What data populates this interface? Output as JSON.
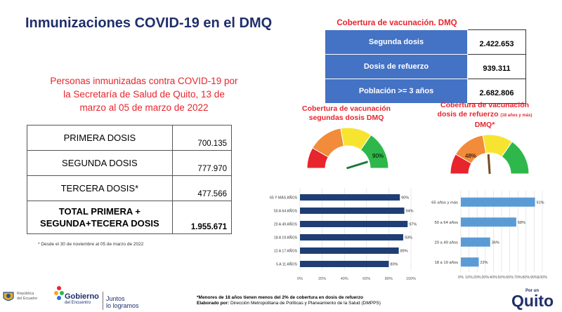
{
  "page_title": "Inmunizaciones COVID-19 en el DMQ",
  "left": {
    "subtitle_lines": [
      "Personas inmunizadas contra COVID-19 por",
      "la Secretaría de Salud de Quito, 13 de",
      "marzo al 05 de marzo de 2022"
    ],
    "rows": [
      {
        "label": "PRIMERA DOSIS",
        "value": "700.135"
      },
      {
        "label": "SEGUNDA DOSIS",
        "value": "777.970"
      },
      {
        "label": "TERCERA DOSIS*",
        "value": "477.566"
      }
    ],
    "total_label_1": "TOTAL PRIMERA +",
    "total_label_2": "SEGUNDA+TECERA DOSIS",
    "total_value": "1.955.671",
    "footnote": "* Desde el  30 de noviembre al 05 de marzo de 2022"
  },
  "coverage": {
    "title": "Cobertura de vacunación. DMQ",
    "rows": [
      {
        "label": "Segunda dosis",
        "value": "2.422.653"
      },
      {
        "label": "Dosis de refuerzo",
        "value": "939.311"
      },
      {
        "label": "Población >= 3 años",
        "value": "2.682.806"
      }
    ]
  },
  "gauge1": {
    "title_1": "Cobertura de vacunación",
    "title_2": "segundas dosis DMQ",
    "label": "90%",
    "value": 90
  },
  "gauge2": {
    "title_1": "Cobertura de vacunación",
    "title_2": "dosis de refuerzo",
    "title_small": "(18 años y más)",
    "title_3": "DMQ*",
    "label": "48%",
    "value": 48
  },
  "colors": {
    "navy": "#1f2f6b",
    "bar_dark": "#1f3e73",
    "bar_light": "#5b9bd5",
    "red": "#e8242c",
    "orange": "#f28c3a",
    "yellow": "#f7e431",
    "green": "#2eb84b"
  },
  "chart_data": [
    {
      "type": "bar",
      "orientation": "horizontal",
      "categories": [
        "65 Y MÁS AÑOS",
        "50 A 64 AÑOS",
        "20 A 49 AÑOS",
        "18 A 19 AÑOS",
        "12 A 17 AÑOS",
        "5 A 11 AÑOS"
      ],
      "values": [
        90,
        94,
        97,
        93,
        89,
        80
      ],
      "value_labels": [
        "90%",
        "94%",
        "97%",
        "93%",
        "89%",
        "80%"
      ],
      "x_ticks": [
        "0%",
        "20%",
        "40%",
        "60%",
        "80%",
        "100%"
      ],
      "xlim": [
        0,
        100
      ],
      "grid": true
    },
    {
      "type": "bar",
      "orientation": "horizontal",
      "categories": [
        "65 años y más",
        "50 a 64 años",
        "20 a 49 años",
        "18 a 19 años"
      ],
      "values": [
        91,
        68,
        36,
        22
      ],
      "value_labels": [
        "91%",
        "68%",
        "36%",
        "22%"
      ],
      "x_ticks": [
        "0%",
        "10%",
        "20%",
        "30%",
        "40%",
        "50%",
        "60%",
        "70%",
        "80%",
        "90%",
        "100%"
      ],
      "xlim": [
        0,
        100
      ],
      "grid": true
    }
  ],
  "logos": {
    "republica_1": "República",
    "republica_2": "del Ecuador",
    "gobierno_1": "Gobierno",
    "gobierno_2": "del Encuentro",
    "juntos_1": "Juntos",
    "juntos_2": "lo logramos",
    "quito_small": "Por un",
    "quito_big": "Quito"
  },
  "notes": {
    "line1": "*Menores de 18 años tienen menos del 2% de cobertura en dosis de refuerzo",
    "line2_bold": "Elaborado por:",
    "line2_rest": " Dirección Metropolitana de Políticas y Planeamiento de la Salud (DMPPS)"
  }
}
